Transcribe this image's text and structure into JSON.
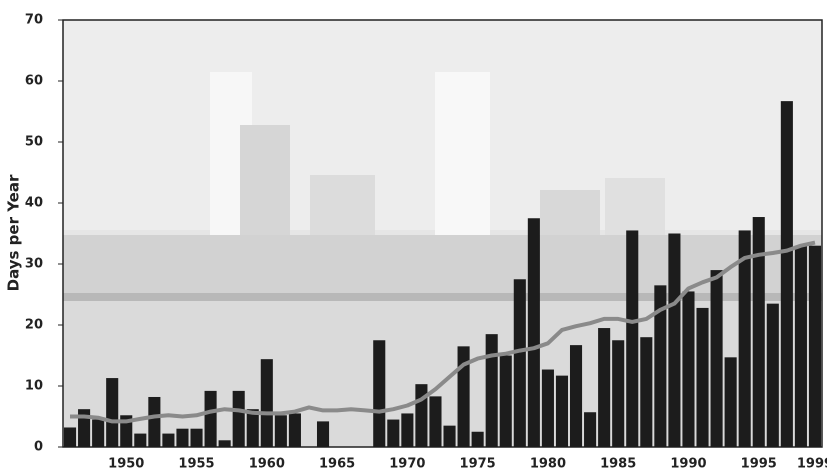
{
  "chart_data": {
    "type": "bar",
    "ylabel": "Days per Year",
    "categories": [
      null,
      null,
      null,
      null,
      "1950",
      null,
      null,
      null,
      null,
      "1955",
      null,
      null,
      null,
      null,
      "1960",
      null,
      null,
      null,
      null,
      "1965",
      null,
      null,
      null,
      null,
      "1970",
      null,
      null,
      null,
      null,
      "1975",
      null,
      null,
      null,
      null,
      "1980",
      null,
      null,
      null,
      null,
      "1985",
      null,
      null,
      null,
      null,
      "1990",
      null,
      null,
      null,
      null,
      "1995",
      null,
      null,
      null,
      "1999"
    ],
    "values": [
      3.2,
      6.2,
      4.5,
      11.3,
      5.2,
      2.2,
      8.2,
      2.2,
      3.0,
      3.0,
      9.2,
      1.1,
      9.2,
      6.2,
      14.4,
      5.2,
      5.5,
      0,
      4.2,
      0,
      0,
      0,
      17.5,
      4.5,
      5.5,
      10.3,
      8.3,
      3.5,
      16.5,
      2.5,
      18.5,
      15,
      27.5,
      37.5,
      12.7,
      11.7,
      16.7,
      5.7,
      19.5,
      17.5,
      35.5,
      18,
      26.5,
      35,
      25.5,
      22.8,
      29,
      14.7,
      35.5,
      37.7,
      23.5,
      56.7,
      33,
      33
    ],
    "color": "#1c1c1c",
    "trend": {
      "color": "#8a8a8a",
      "values": [
        5,
        5,
        4.8,
        4.2,
        4.2,
        4.6,
        5,
        5.2,
        5,
        5.2,
        5.8,
        6.2,
        6,
        5.6,
        5.5,
        5.5,
        5.8,
        6.5,
        6,
        6,
        6.2,
        6,
        5.8,
        6.2,
        6.8,
        7.8,
        9.5,
        11.5,
        13.5,
        14.5,
        15,
        15.3,
        15.8,
        16.2,
        17,
        19.2,
        19.8,
        20.3,
        21,
        21,
        20.5,
        21,
        22.5,
        23.5,
        26,
        27,
        27.8,
        29.5,
        31,
        31.5,
        31.8,
        32.2,
        33,
        33.5
      ]
    },
    "ylim": [
      0,
      70
    ],
    "yticks": [
      0,
      10,
      20,
      30,
      40,
      50,
      60,
      70
    ],
    "grid": false
  }
}
